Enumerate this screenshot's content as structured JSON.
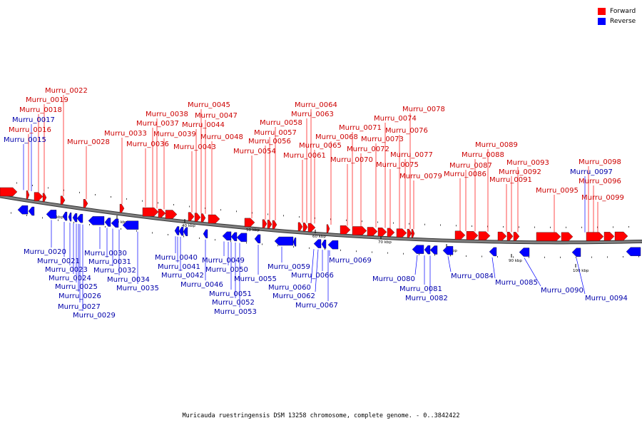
{
  "colors": {
    "forward": "#ff0000",
    "reverse": "#0000ff",
    "forward_label": "#cc0000",
    "reverse_label": "#0000aa",
    "backbone": "#808080"
  },
  "legend": [
    {
      "label": "Forward",
      "color": "#ff0000"
    },
    {
      "label": "Reverse",
      "color": "#0000ff"
    }
  ],
  "caption": "Muricauda ruestringensis DSM 13258 chromosome, complete genome. - 0..3842422",
  "scale_ticks": [
    {
      "kbp": 20,
      "label": "20 kbp"
    },
    {
      "kbp": 30,
      "label": "30 kbp"
    },
    {
      "kbp": 40,
      "label": "40 kbp"
    },
    {
      "kbp": 50,
      "label": "50 kbp"
    },
    {
      "kbp": 60,
      "label": "60 kbp"
    },
    {
      "kbp": 70,
      "label": "70 kbp"
    },
    {
      "kbp": 80,
      "label": "80 kbp"
    },
    {
      "kbp": 90,
      "label": "90 kbp"
    },
    {
      "kbp": 100,
      "label": "100 kbp"
    }
  ],
  "forward_genes": [
    "Murru_0015",
    "Murru_0016",
    "Murru_0017",
    "Murru_0018",
    "Murru_0019",
    "Murru_0022",
    "Murru_0028",
    "Murru_0033",
    "Murru_0036",
    "Murru_0037",
    "Murru_0038",
    "Murru_0039",
    "Murru_0043",
    "Murru_0044",
    "Murru_0045",
    "Murru_0047",
    "Murru_0048",
    "Murru_0054",
    "Murru_0056",
    "Murru_0057",
    "Murru_0058",
    "Murru_0061",
    "Murru_0063",
    "Murru_0064",
    "Murru_0065",
    "Murru_0068",
    "Murru_0070",
    "Murru_0071",
    "Murru_0072",
    "Murru_0073",
    "Murru_0074",
    "Murru_0075",
    "Murru_0076",
    "Murru_0077",
    "Murru_0078",
    "Murru_0079",
    "Murru_0086",
    "Murru_0087",
    "Murru_0088",
    "Murru_0089",
    "Murru_0091",
    "Murru_0092",
    "Murru_0093",
    "Murru_0095",
    "Murru_0096",
    "Murru_0097",
    "Murru_0098",
    "Murru_0099"
  ],
  "reverse_genes": [
    "Murru_0020",
    "Murru_0021",
    "Murru_0023",
    "Murru_0024",
    "Murru_0025",
    "Murru_0026",
    "Murru_0027",
    "Murru_0029",
    "Murru_0030",
    "Murru_0031",
    "Murru_0032",
    "Murru_0034",
    "Murru_0035",
    "Murru_0040",
    "Murru_0041",
    "Murru_0042",
    "Murru_0046",
    "Murru_0049",
    "Murru_0050",
    "Murru_0051",
    "Murru_0052",
    "Murru_0053",
    "Murru_0055",
    "Murru_0059",
    "Murru_0060",
    "Murru_0062",
    "Murru_0066",
    "Murru_0067",
    "Murru_0069",
    "Murru_0080",
    "Murru_0081",
    "Murru_0082",
    "Murru_0084",
    "Murru_0085",
    "Murru_0090",
    "Murru_0094"
  ]
}
